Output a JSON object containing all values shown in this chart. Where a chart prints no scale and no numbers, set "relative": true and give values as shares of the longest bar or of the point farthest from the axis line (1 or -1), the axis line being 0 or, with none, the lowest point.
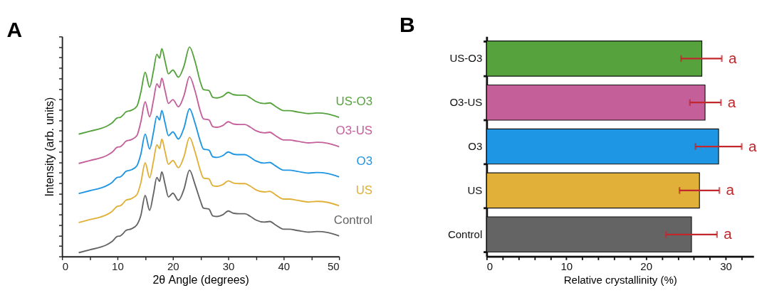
{
  "chart_data": [
    {
      "type": "line",
      "title": "A",
      "xlabel": "2θ Angle (degrees)",
      "ylabel": "Intensity (arb. units)",
      "relative": true,
      "tick_labels": "x",
      "grid": false,
      "legend": false,
      "marker": "none",
      "line_style": "solid",
      "x": [
        3,
        5,
        7,
        8,
        9,
        10,
        10.5,
        11,
        11.5,
        12.5,
        13.5,
        14.2,
        15,
        15.8,
        16.5,
        17.1,
        17.6,
        18,
        18.6,
        19.2,
        20,
        21,
        22,
        23,
        24,
        25,
        25.5,
        26.5,
        27.2,
        28,
        29,
        30,
        31,
        32,
        33,
        34,
        35,
        36.5,
        37.5,
        38.5,
        40,
        41,
        42.5,
        44.5,
        46,
        48,
        50
      ],
      "xlim": [
        0,
        50
      ],
      "xticks": [
        0,
        {
          "value": 5,
          "label": null
        },
        10,
        {
          "value": 15,
          "label": null
        },
        20,
        {
          "value": 25,
          "label": null
        },
        30,
        {
          "value": 35,
          "label": null
        },
        40,
        {
          "value": 45,
          "label": null
        },
        50
      ],
      "series": [
        {
          "name": "Control",
          "color": "#646464",
          "values": [
            0.018,
            0.032,
            0.045,
            0.055,
            0.071,
            0.096,
            0.098,
            0.109,
            0.124,
            0.132,
            0.151,
            0.194,
            0.291,
            0.22,
            0.3,
            0.377,
            0.359,
            0.404,
            0.343,
            0.284,
            0.302,
            0.268,
            0.321,
            0.412,
            0.343,
            0.263,
            0.231,
            0.226,
            0.194,
            0.191,
            0.199,
            0.217,
            0.206,
            0.204,
            0.204,
            0.191,
            0.174,
            0.164,
            0.167,
            0.151,
            0.13,
            0.13,
            0.124,
            0.116,
            0.119,
            0.114,
            0.098
          ]
        },
        {
          "name": "US",
          "color": "#e0b038",
          "values": [
            0.162,
            0.176,
            0.189,
            0.199,
            0.215,
            0.24,
            0.242,
            0.253,
            0.268,
            0.276,
            0.295,
            0.35,
            0.447,
            0.376,
            0.456,
            0.533,
            0.515,
            0.56,
            0.499,
            0.44,
            0.458,
            0.424,
            0.477,
            0.568,
            0.499,
            0.407,
            0.375,
            0.37,
            0.338,
            0.335,
            0.343,
            0.361,
            0.35,
            0.348,
            0.348,
            0.335,
            0.318,
            0.308,
            0.311,
            0.295,
            0.274,
            0.274,
            0.268,
            0.26,
            0.263,
            0.258,
            0.242
          ]
        },
        {
          "name": "O3",
          "color": "#1f96e3",
          "values": [
            0.3,
            0.314,
            0.327,
            0.337,
            0.353,
            0.378,
            0.38,
            0.391,
            0.406,
            0.414,
            0.433,
            0.487,
            0.584,
            0.513,
            0.593,
            0.67,
            0.652,
            0.697,
            0.636,
            0.577,
            0.595,
            0.561,
            0.614,
            0.705,
            0.636,
            0.545,
            0.513,
            0.508,
            0.476,
            0.473,
            0.481,
            0.499,
            0.488,
            0.486,
            0.486,
            0.473,
            0.456,
            0.446,
            0.449,
            0.433,
            0.412,
            0.412,
            0.406,
            0.398,
            0.401,
            0.396,
            0.38
          ]
        },
        {
          "name": "O3-US",
          "color": "#c55f9a",
          "values": [
            0.444,
            0.458,
            0.471,
            0.481,
            0.497,
            0.522,
            0.524,
            0.535,
            0.55,
            0.558,
            0.577,
            0.641,
            0.738,
            0.667,
            0.747,
            0.824,
            0.806,
            0.851,
            0.79,
            0.731,
            0.749,
            0.715,
            0.768,
            0.859,
            0.79,
            0.689,
            0.657,
            0.652,
            0.62,
            0.617,
            0.625,
            0.643,
            0.632,
            0.63,
            0.63,
            0.617,
            0.6,
            0.59,
            0.593,
            0.577,
            0.556,
            0.556,
            0.55,
            0.542,
            0.545,
            0.54,
            0.524
          ]
        },
        {
          "name": "US-O3",
          "color": "#56a33e",
          "values": [
            0.584,
            0.598,
            0.611,
            0.621,
            0.637,
            0.662,
            0.664,
            0.675,
            0.69,
            0.698,
            0.717,
            0.782,
            0.879,
            0.808,
            0.888,
            0.965,
            0.947,
            0.992,
            0.931,
            0.872,
            0.89,
            0.856,
            0.909,
            1.0,
            0.931,
            0.829,
            0.797,
            0.792,
            0.76,
            0.757,
            0.765,
            0.783,
            0.772,
            0.77,
            0.77,
            0.757,
            0.74,
            0.73,
            0.733,
            0.717,
            0.696,
            0.696,
            0.69,
            0.682,
            0.685,
            0.68,
            0.664
          ]
        }
      ]
    },
    {
      "type": "bar",
      "title": "B",
      "orientation": "horizontal",
      "xlabel": "Relative crystallinity (%)",
      "grid": false,
      "legend": false,
      "categories": [
        "US-O3",
        "O3-US",
        "O3",
        "US",
        "Control"
      ],
      "values": [
        27.0,
        27.4,
        29.1,
        26.7,
        25.7
      ],
      "colors": [
        "#56a33e",
        "#c55f9a",
        "#1f96e3",
        "#e0b038",
        "#646464"
      ],
      "errors": [
        [
          24.4,
          29.5
        ],
        [
          25.5,
          29.4
        ],
        [
          26.2,
          32.0
        ],
        [
          24.2,
          29.2
        ],
        [
          22.5,
          28.9
        ]
      ],
      "xlim": [
        0,
        33.5
      ],
      "xticks": [
        0,
        {
          "value": 2,
          "label": null
        },
        {
          "value": 4,
          "label": null
        },
        {
          "value": 6,
          "label": null
        },
        {
          "value": 8,
          "label": null
        },
        10,
        {
          "value": 12,
          "label": null
        },
        {
          "value": 14,
          "label": null
        },
        {
          "value": 16,
          "label": null
        },
        {
          "value": 18,
          "label": null
        },
        20,
        {
          "value": 22,
          "label": null
        },
        {
          "value": 24,
          "label": null
        },
        {
          "value": 26,
          "label": null
        },
        {
          "value": 28,
          "label": null
        },
        30,
        {
          "value": 32,
          "label": null
        }
      ],
      "annotations": [
        {
          "text": "a",
          "x": 29.5,
          "y": "US-O3"
        },
        {
          "text": "a",
          "x": 29.4,
          "y": "O3-US"
        },
        {
          "text": "a",
          "x": 32.0,
          "y": "O3"
        },
        {
          "text": "a",
          "x": 29.2,
          "y": "US"
        },
        {
          "text": "a",
          "x": 28.9,
          "y": "Control"
        }
      ]
    }
  ]
}
